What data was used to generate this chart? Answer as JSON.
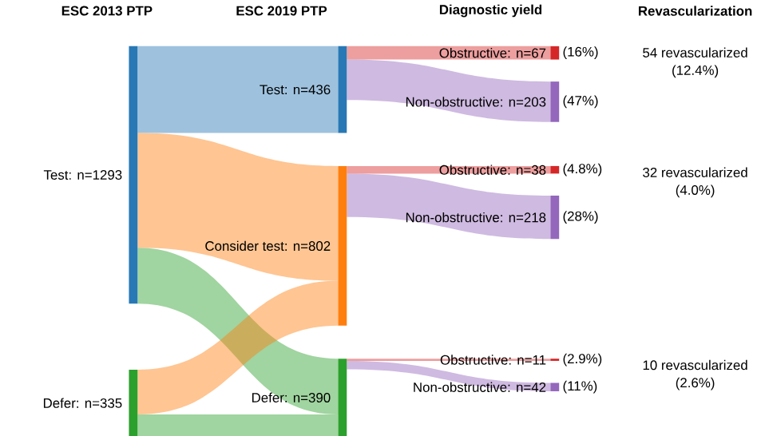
{
  "chart_data": {
    "type": "other",
    "categories": [
      "Test",
      "Defer",
      "Test",
      "Consider test",
      "Defer",
      "Obstructive",
      "Non-obstructive",
      "Obstructive",
      "Non-obstructive",
      "Obstructive",
      "Non-obstructive"
    ],
    "values": [
      1293,
      335,
      436,
      802,
      390,
      67,
      203,
      38,
      218,
      11,
      42
    ],
    "value_labels": [
      ": n=1293",
      ": n=335",
      ": n=436",
      ": n=802",
      ": n=390",
      ": n=67",
      ": n=203",
      ": n=38",
      ": n=218",
      ": n=11",
      ": n=42"
    ],
    "colors": [
      "#2878b5",
      "#2ca02c",
      "#2878b5",
      "#ff7f0e",
      "#2ca02c",
      "#d62728",
      "#9467bd",
      "#d62728",
      "#9467bd",
      "#d62728",
      "#9467bd"
    ],
    "annotations": [
      "ESC 2013 PTP",
      "ESC 2019 PTP",
      "Diagnostic yield",
      "Revascularization",
      "54 revascularized",
      "(12.4%)",
      "32 revascularized",
      "(4.0%)",
      "10 revascularized",
      "(2.6%)",
      "(16%)",
      "(47%)",
      "(4.8%)",
      "(28%)",
      "(2.9%)",
      "(11%)"
    ]
  }
}
